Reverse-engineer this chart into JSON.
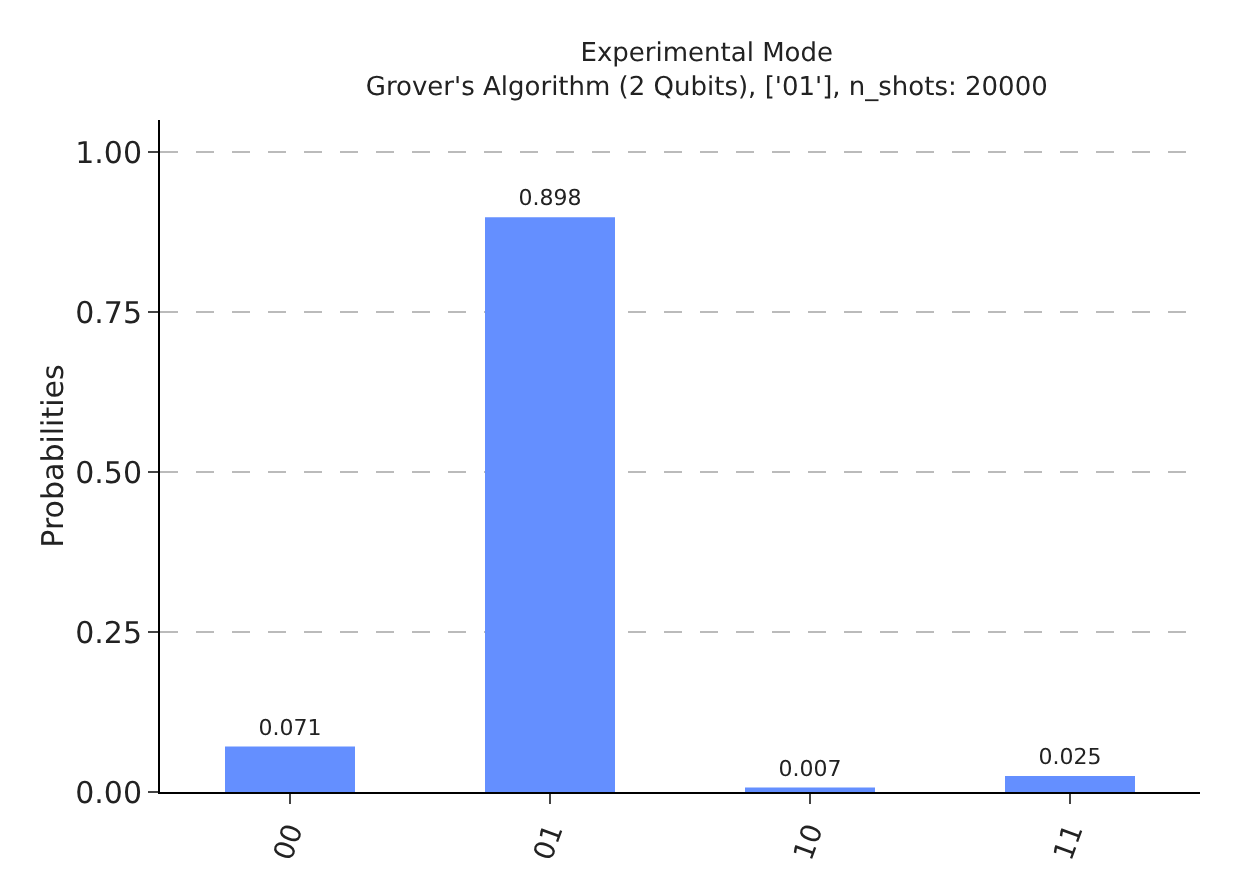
{
  "chart_data": {
    "type": "bar",
    "title": "Experimental Mode",
    "subtitle": "Grover's Algorithm (2 Qubits), ['01'], n_shots: 20000",
    "ylabel": "Probabilities",
    "categories": [
      "00",
      "01",
      "10",
      "11"
    ],
    "values": [
      0.071,
      0.898,
      0.007,
      0.025
    ],
    "color": "#648fff",
    "ylim": [
      0,
      1.05
    ],
    "yticks": [
      {
        "value": 0,
        "label": "0.00"
      },
      {
        "value": 0.25,
        "label": "0.25"
      },
      {
        "value": 0.5,
        "label": "0.50"
      },
      {
        "value": 0.75,
        "label": "0.75"
      },
      {
        "value": 1,
        "label": "1.00"
      }
    ],
    "grid": "y",
    "data_labels": true
  }
}
